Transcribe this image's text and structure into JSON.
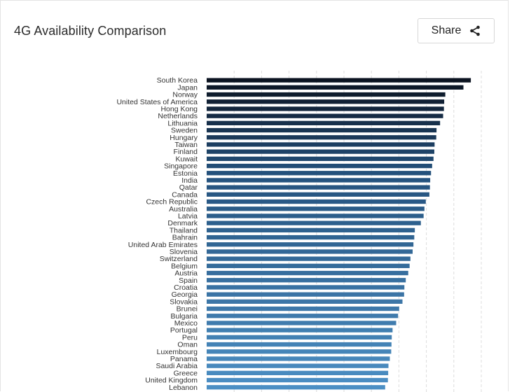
{
  "header": {
    "title": "4G Availability Comparison",
    "share_label": "Share",
    "share_icon": "share-icon"
  },
  "chart_data": {
    "type": "bar",
    "orientation": "horizontal",
    "title": "4G Availability Comparison",
    "xlabel": "",
    "ylabel": "",
    "grid": true,
    "xlim": [
      0,
      100
    ],
    "categories": [
      "South Korea",
      "Japan",
      "Norway",
      "United States of America",
      "Hong Kong",
      "Netherlands",
      "Lithuania",
      "Sweden",
      "Hungary",
      "Taiwan",
      "Finland",
      "Kuwait",
      "Singapore",
      "Estonia",
      "India",
      "Qatar",
      "Canada",
      "Czech Republic",
      "Australia",
      "Latvia",
      "Denmark",
      "Thailand",
      "Bahrain",
      "United Arab Emirates",
      "Slovenia",
      "Switzerland",
      "Belgium",
      "Austria",
      "Spain",
      "Croatia",
      "Georgia",
      "Slovakia",
      "Brunei",
      "Bulgaria",
      "Mexico",
      "Portugal",
      "Peru",
      "Oman",
      "Luxembourg",
      "Panama",
      "Saudi Arabia",
      "Greece",
      "United Kingdom",
      "Lebanon"
    ],
    "values": [
      96.2,
      93.5,
      86.9,
      86.5,
      86.4,
      86.1,
      85.0,
      83.7,
      83.6,
      83.0,
      82.9,
      82.6,
      82.1,
      81.7,
      81.4,
      81.3,
      81.1,
      79.8,
      79.3,
      79.0,
      78.0,
      75.8,
      75.6,
      75.3,
      75.0,
      74.2,
      73.9,
      73.4,
      72.5,
      72.0,
      71.9,
      71.3,
      70.1,
      69.7,
      69.0,
      67.7,
      67.4,
      67.3,
      67.2,
      66.7,
      66.2,
      66.1,
      66.0,
      65.0
    ],
    "colors": {
      "darkest": "#0b1320",
      "mid": "#24517c",
      "lightest": "#4c8fc4",
      "grid": "#dcdcdc"
    }
  }
}
